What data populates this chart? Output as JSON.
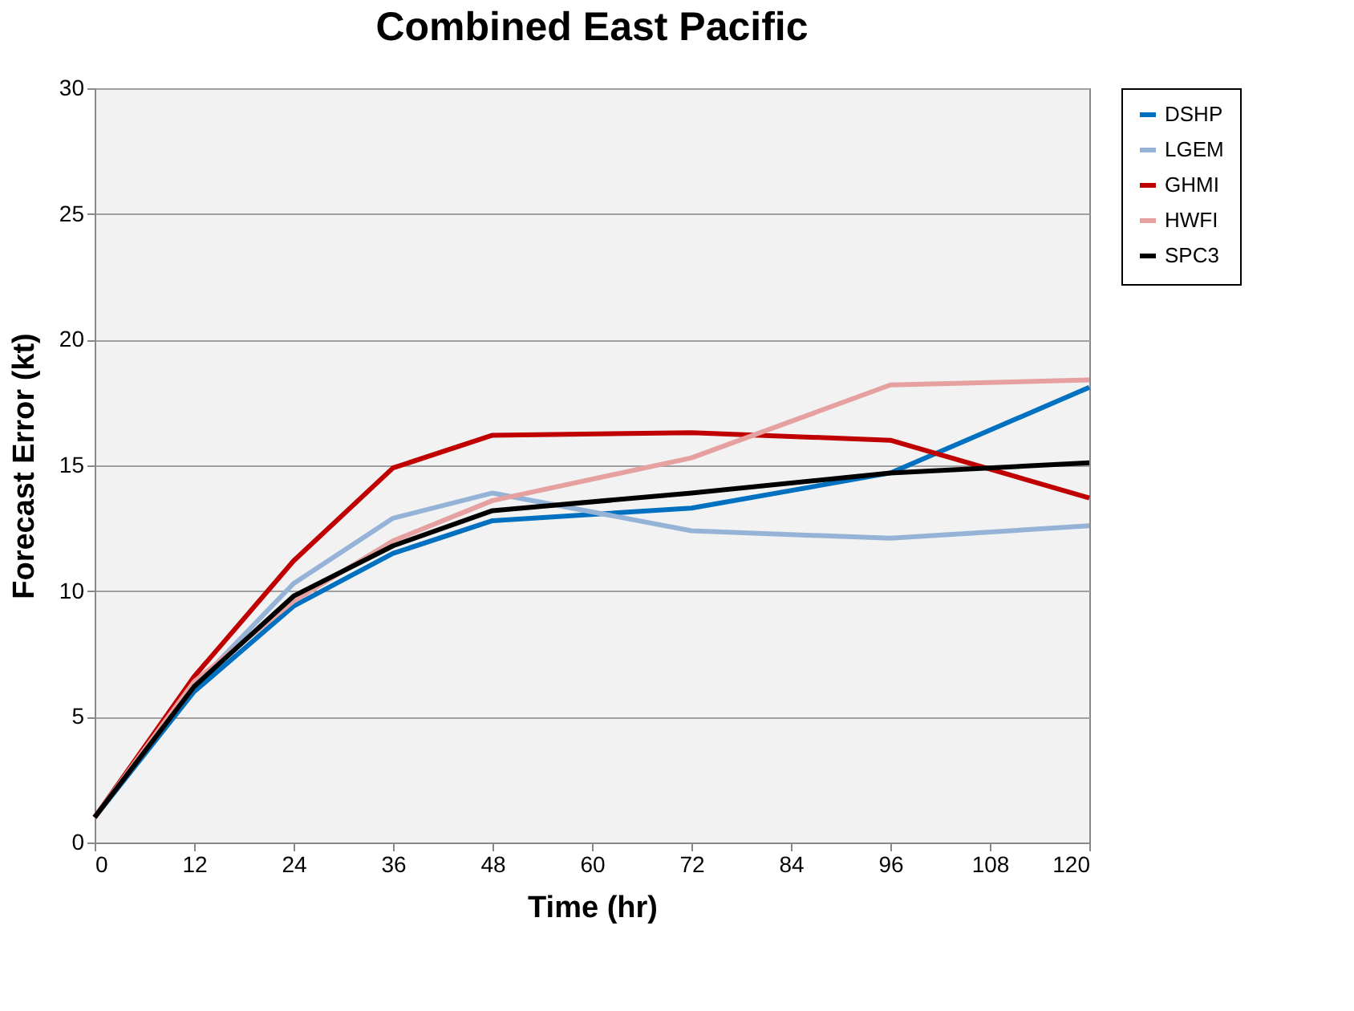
{
  "chart_data": {
    "type": "line",
    "title": "Combined East Pacific",
    "xlabel": "Time (hr)",
    "ylabel": "Forecast Error (kt)",
    "x": [
      0,
      12,
      24,
      36,
      48,
      72,
      96,
      120
    ],
    "series": [
      {
        "name": "DSHP",
        "color": "#0070c0",
        "values": [
          1,
          6.0,
          9.4,
          11.5,
          12.8,
          13.3,
          14.7,
          18.1
        ]
      },
      {
        "name": "LGEM",
        "color": "#95b3d7",
        "values": [
          1,
          6.2,
          10.3,
          12.9,
          13.9,
          12.4,
          12.1,
          12.6
        ]
      },
      {
        "name": "GHMI",
        "color": "#c00000",
        "values": [
          1,
          6.6,
          11.2,
          14.9,
          16.2,
          16.3,
          16.0,
          13.7
        ]
      },
      {
        "name": "HWFI",
        "color": "#e6a0a0",
        "values": [
          1,
          6.4,
          9.6,
          12.0,
          13.6,
          15.3,
          18.2,
          18.4
        ]
      },
      {
        "name": "SPC3",
        "color": "#000000",
        "values": [
          1,
          6.2,
          9.8,
          11.8,
          13.2,
          13.9,
          14.7,
          15.1
        ]
      }
    ],
    "xlim": [
      0,
      120
    ],
    "xticks": [
      0,
      12,
      24,
      36,
      48,
      60,
      72,
      84,
      96,
      108,
      120
    ],
    "ylim": [
      0,
      30
    ],
    "yticks": [
      0,
      5,
      10,
      15,
      20,
      25,
      30
    ],
    "grid": "y",
    "legend": "right",
    "marker": "none",
    "line_style": "solid"
  }
}
